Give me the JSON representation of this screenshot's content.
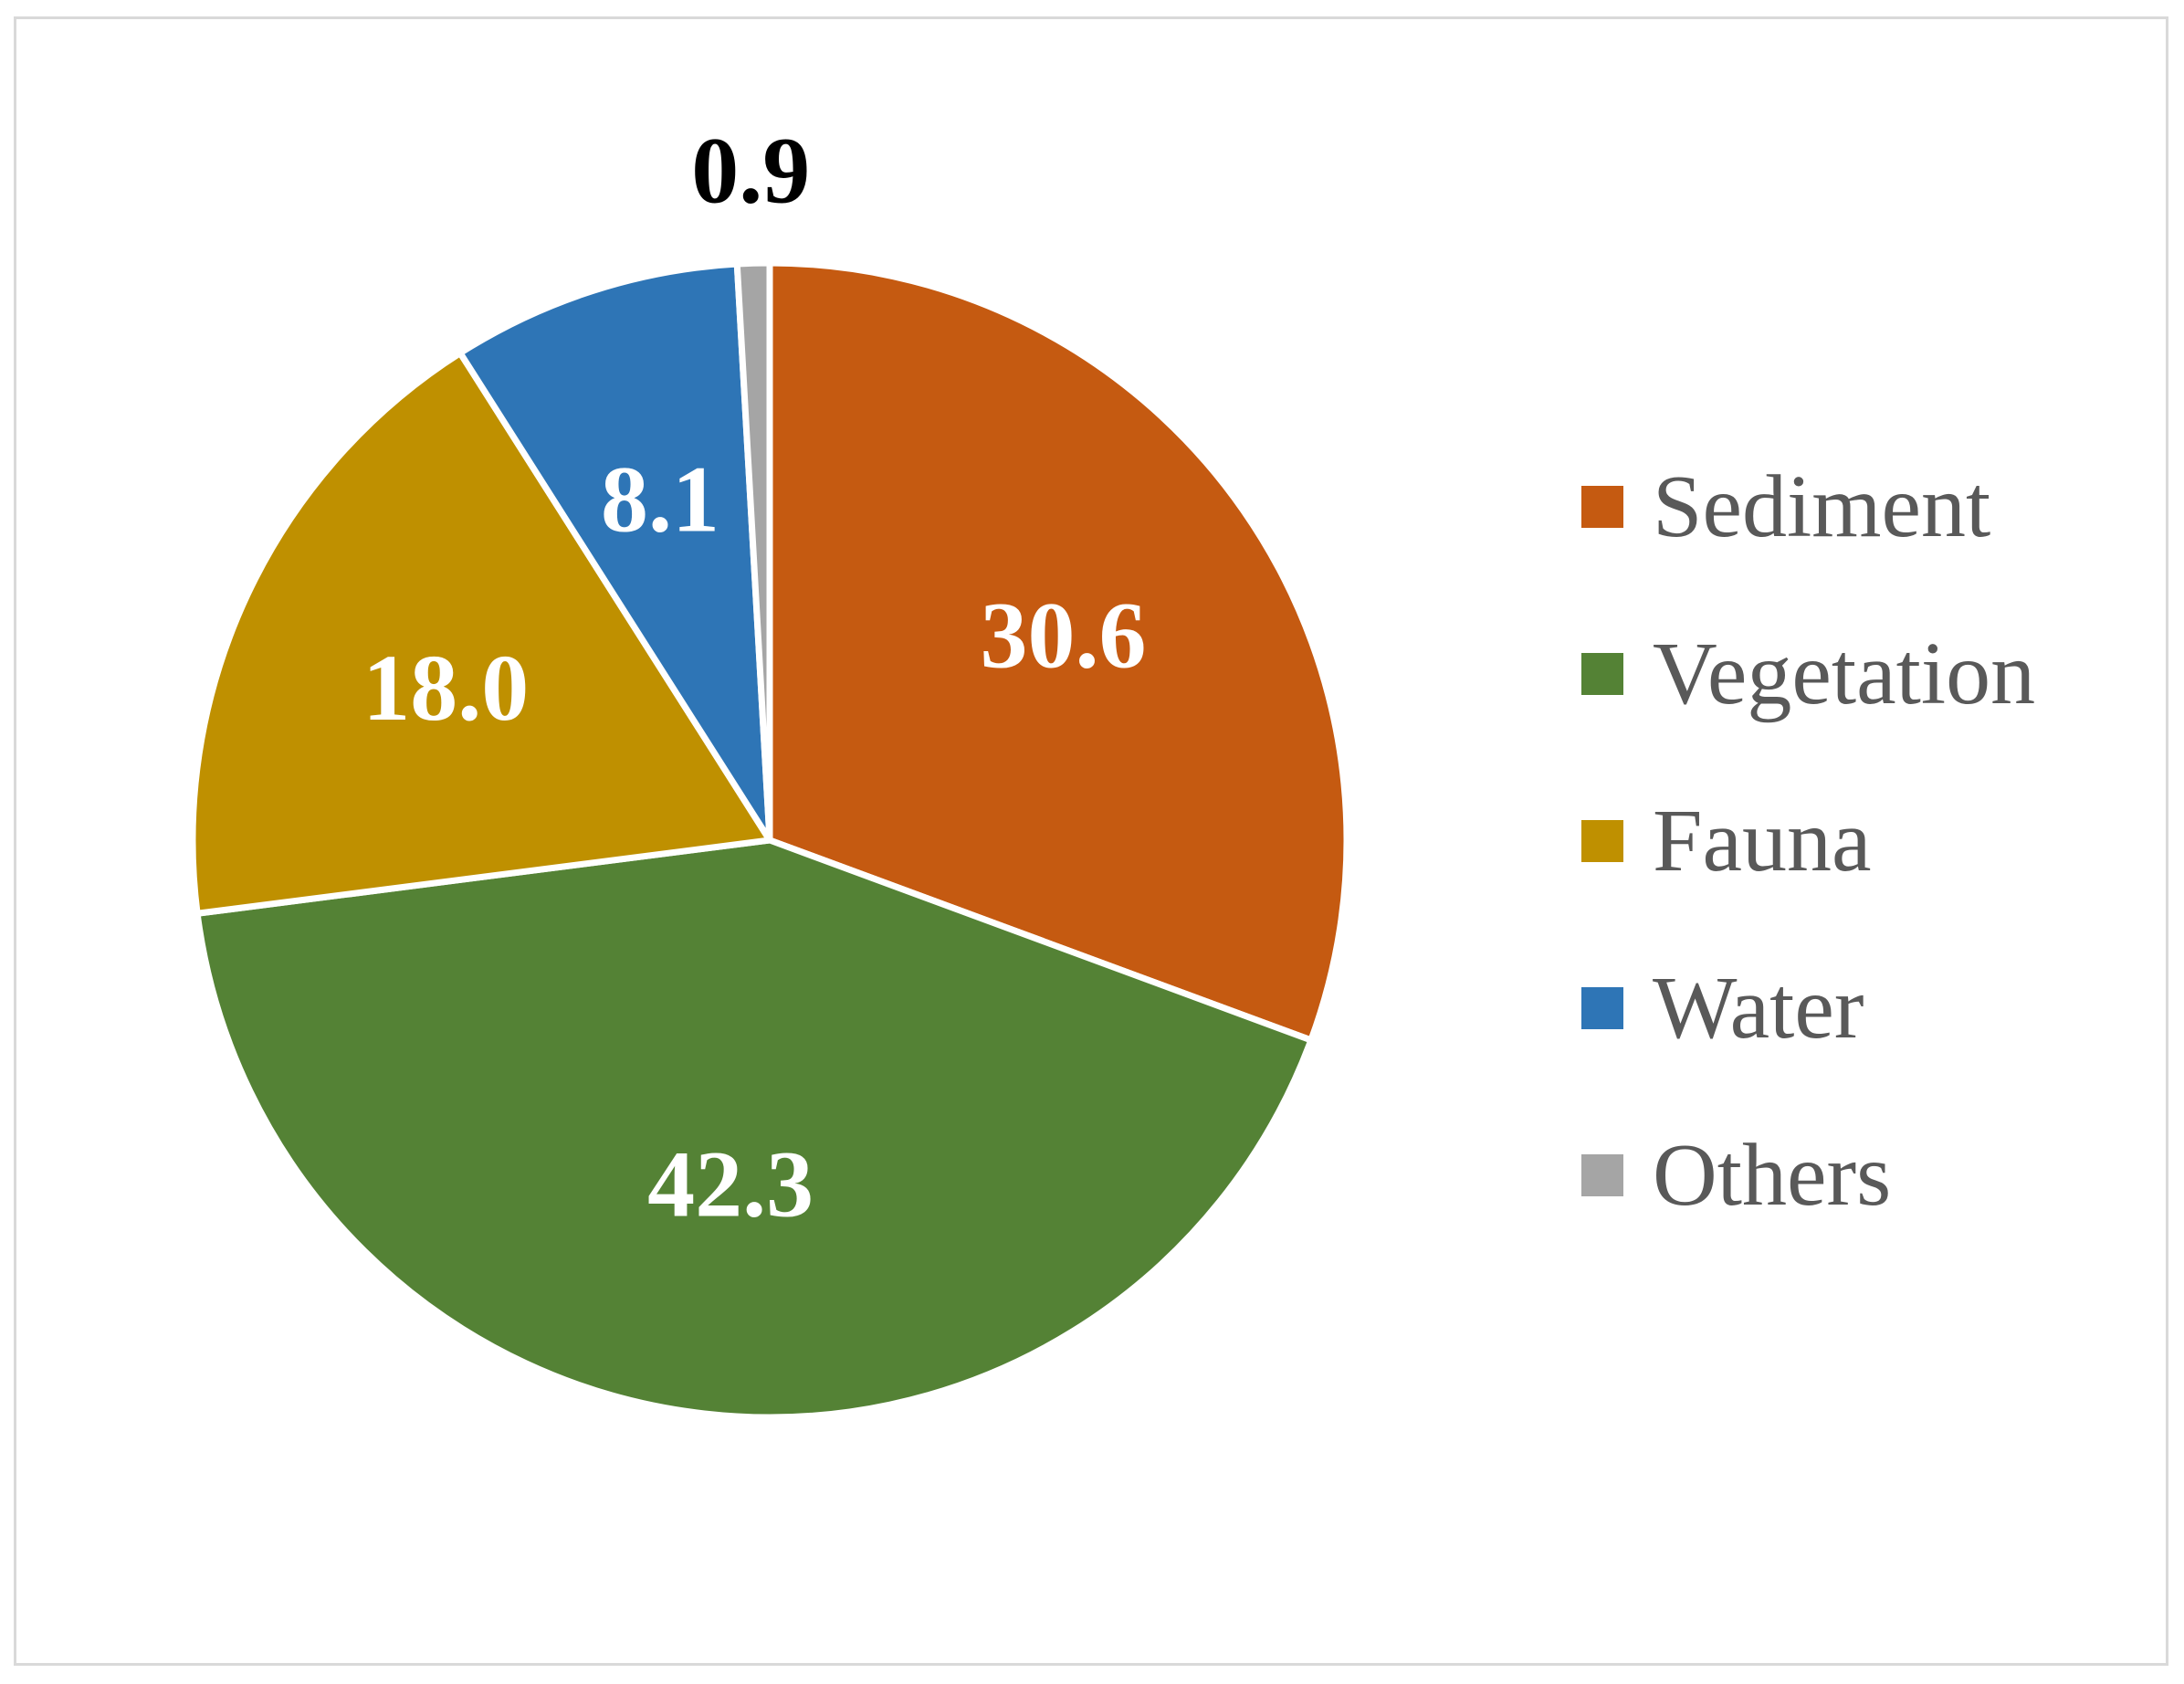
{
  "chart_data": {
    "type": "pie",
    "title": "",
    "legend_position": "right",
    "categories": [
      "Sediment",
      "Vegetation",
      "Fauna",
      "Water",
      "Others"
    ],
    "values": [
      30.6,
      42.3,
      18.0,
      8.1,
      0.9
    ],
    "value_labels": [
      "30.6",
      "42.3",
      "18.0",
      "8.1",
      "0.9"
    ],
    "colors": [
      "#C55A11",
      "#548235",
      "#BF9000",
      "#2E75B6",
      "#A5A5A5"
    ],
    "label_colors": [
      "#FFFFFF",
      "#FFFFFF",
      "#FFFFFF",
      "#FFFFFF",
      "#000000"
    ],
    "legend": [
      {
        "label": "Sediment",
        "color": "#C55A11"
      },
      {
        "label": "Vegetation",
        "color": "#548235"
      },
      {
        "label": "Fauna",
        "color": "#BF9000"
      },
      {
        "label": "Water",
        "color": "#2E75B6"
      },
      {
        "label": "Others",
        "color": "#A5A5A5"
      }
    ]
  }
}
